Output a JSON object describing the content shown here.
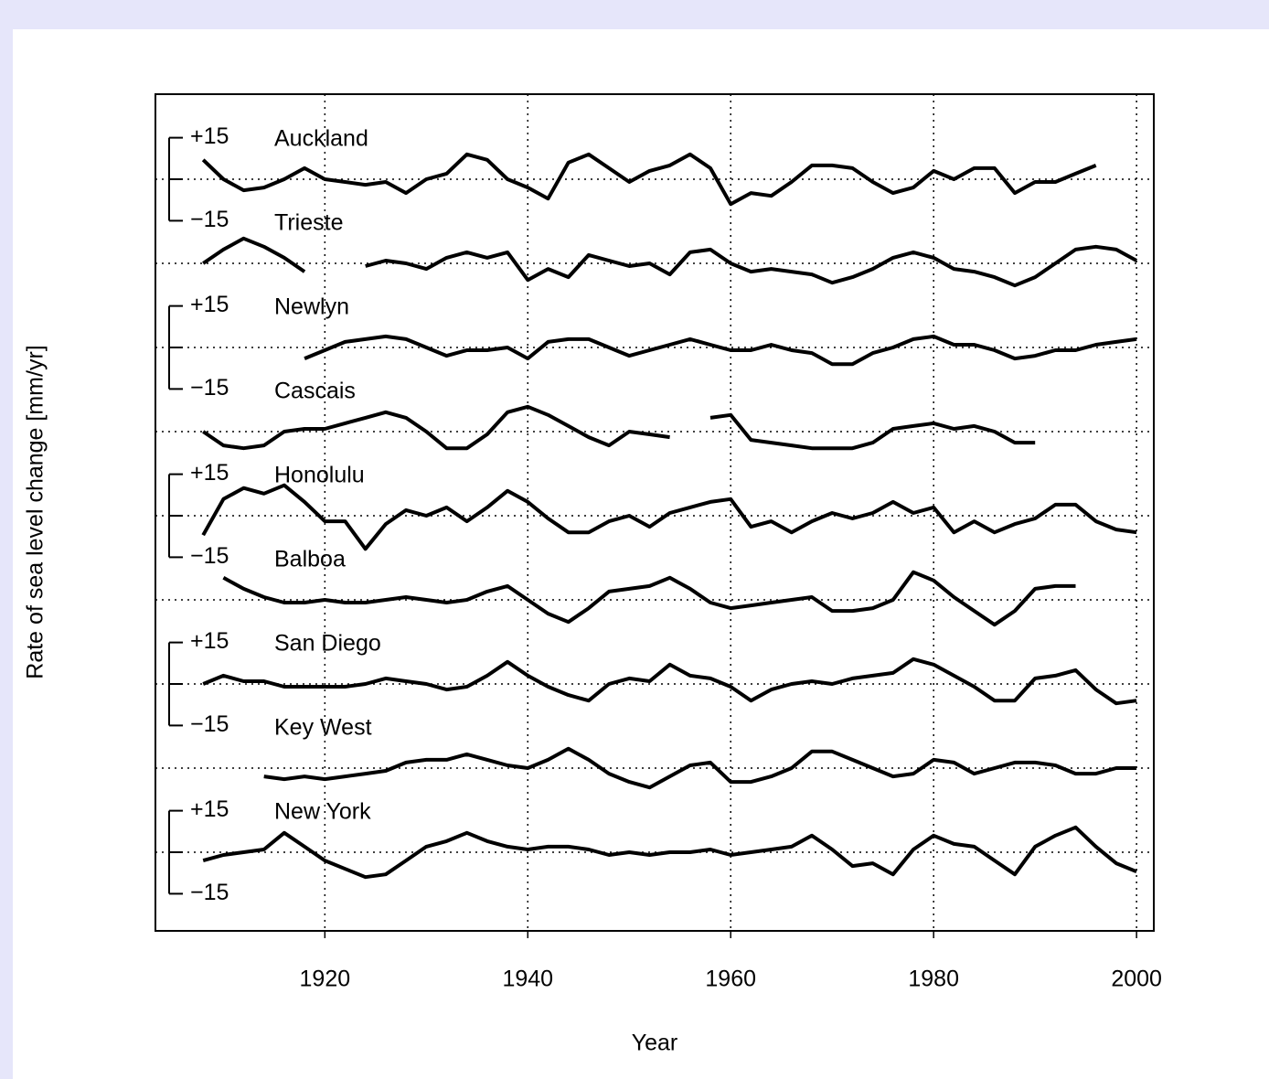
{
  "chart_data": {
    "type": "line",
    "xlabel": "Year",
    "ylabel": "Rate of sea level change [mm/yr]",
    "x": [
      1908,
      1910,
      1912,
      1914,
      1916,
      1918,
      1920,
      1922,
      1924,
      1926,
      1928,
      1930,
      1932,
      1934,
      1936,
      1938,
      1940,
      1942,
      1944,
      1946,
      1948,
      1950,
      1952,
      1954,
      1956,
      1958,
      1960,
      1962,
      1964,
      1966,
      1968,
      1970,
      1972,
      1974,
      1976,
      1978,
      1980,
      1982,
      1984,
      1986,
      1988,
      1990,
      1992,
      1994,
      1996,
      1998,
      2000
    ],
    "xlim": [
      1903.3,
      2001.7
    ],
    "xticks": [
      1920,
      1940,
      1960,
      1980,
      2000
    ],
    "ylim": [
      -15.2,
      15.2
    ],
    "yticks": [
      {
        "value": 15,
        "label": "+15"
      },
      {
        "value": -15,
        "label": "−15"
      }
    ],
    "grid": true,
    "series": [
      {
        "name": "Auckland",
        "color": "#000000",
        "values": [
          7,
          0,
          -4,
          -3,
          0,
          4,
          0,
          -1,
          -2,
          -1,
          -5,
          0,
          2,
          9,
          7,
          0,
          -3,
          -7,
          6,
          9,
          4,
          -1,
          3,
          5,
          9,
          4,
          -9,
          -5,
          -6,
          -1,
          5,
          5,
          4,
          -1,
          -5,
          -3,
          3,
          0,
          4,
          4,
          -5,
          -1,
          -1,
          2,
          5,
          null,
          null
        ]
      },
      {
        "name": "Trieste",
        "color": "#000000",
        "values": [
          0,
          5,
          9,
          6,
          2,
          -3,
          null,
          null,
          -1,
          1,
          0,
          -2,
          2,
          4,
          2,
          4,
          -6,
          -2,
          -5,
          3,
          1,
          -1,
          0,
          -4,
          4,
          5,
          0,
          -3,
          -2,
          -3,
          -4,
          -7,
          -5,
          -2,
          2,
          4,
          2,
          -2,
          -3,
          -5,
          -8,
          -5,
          0,
          5,
          6,
          5,
          1
        ]
      },
      {
        "name": "Newlyn",
        "color": "#000000",
        "values": [
          null,
          null,
          null,
          null,
          null,
          -4,
          -1,
          2,
          3,
          4,
          3,
          0,
          -3,
          -1,
          -1,
          0,
          -4,
          2,
          3,
          3,
          0,
          -3,
          -1,
          1,
          3,
          1,
          -1,
          -1,
          1,
          -1,
          -2,
          -6,
          -6,
          -2,
          0,
          3,
          4,
          1,
          1,
          -1,
          -4,
          -3,
          -1,
          -1,
          1,
          2,
          3
        ]
      },
      {
        "name": "Cascais",
        "color": "#000000",
        "values": [
          0,
          -5,
          -6,
          -5,
          0,
          1,
          1,
          3,
          5,
          7,
          5,
          0,
          -6,
          -6,
          -1,
          7,
          9,
          6,
          2,
          -2,
          -5,
          0,
          -1,
          -2,
          null,
          5,
          6,
          -3,
          -4,
          -5,
          -6,
          -6,
          -6,
          -4,
          1,
          2,
          3,
          1,
          2,
          0,
          -4,
          -4,
          null,
          null,
          null,
          null,
          null
        ]
      },
      {
        "name": "Honolulu",
        "color": "#000000",
        "values": [
          -7,
          6,
          10,
          8,
          11,
          5,
          -2,
          -2,
          -12,
          -3,
          2,
          0,
          3,
          -2,
          3,
          9,
          5,
          -1,
          -6,
          -6,
          -2,
          0,
          -4,
          1,
          3,
          5,
          6,
          -4,
          -2,
          -6,
          -2,
          1,
          -1,
          1,
          5,
          1,
          3,
          -6,
          -2,
          -6,
          -3,
          -1,
          4,
          4,
          -2,
          -5,
          -6
        ]
      },
      {
        "name": "Balboa",
        "color": "#000000",
        "values": [
          null,
          8,
          4,
          1,
          -1,
          -1,
          0,
          -1,
          -1,
          0,
          1,
          0,
          -1,
          0,
          3,
          5,
          0,
          -5,
          -8,
          -3,
          3,
          4,
          5,
          8,
          4,
          -1,
          -3,
          -2,
          -1,
          0,
          1,
          -4,
          -4,
          -3,
          0,
          10,
          7,
          1,
          -4,
          -9,
          -4,
          4,
          5,
          5,
          null,
          null,
          null
        ]
      },
      {
        "name": "San Diego",
        "color": "#000000",
        "values": [
          0,
          3,
          1,
          1,
          -1,
          -1,
          -1,
          -1,
          0,
          2,
          1,
          0,
          -2,
          -1,
          3,
          8,
          3,
          -1,
          -4,
          -6,
          0,
          2,
          1,
          7,
          3,
          2,
          -1,
          -6,
          -2,
          0,
          1,
          0,
          2,
          3,
          4,
          9,
          7,
          3,
          -1,
          -6,
          -6,
          2,
          3,
          5,
          -2,
          -7,
          -6
        ]
      },
      {
        "name": "Key West",
        "color": "#000000",
        "values": [
          null,
          null,
          null,
          -3,
          -4,
          -3,
          -4,
          -3,
          -2,
          -1,
          2,
          3,
          3,
          5,
          3,
          1,
          0,
          3,
          7,
          3,
          -2,
          -5,
          -7,
          -3,
          1,
          2,
          -5,
          -5,
          -3,
          0,
          6,
          6,
          3,
          0,
          -3,
          -2,
          3,
          2,
          -2,
          0,
          2,
          2,
          1,
          -2,
          -2,
          0,
          0
        ]
      },
      {
        "name": "New York",
        "color": "#000000",
        "values": [
          -3,
          -1,
          0,
          1,
          7,
          2,
          -3,
          -6,
          -9,
          -8,
          -3,
          2,
          4,
          7,
          4,
          2,
          1,
          2,
          2,
          1,
          -1,
          0,
          -1,
          0,
          0,
          1,
          -1,
          0,
          1,
          2,
          6,
          1,
          -5,
          -4,
          -8,
          1,
          6,
          3,
          2,
          -3,
          -8,
          2,
          6,
          9,
          2,
          -4,
          -7
        ]
      }
    ]
  }
}
